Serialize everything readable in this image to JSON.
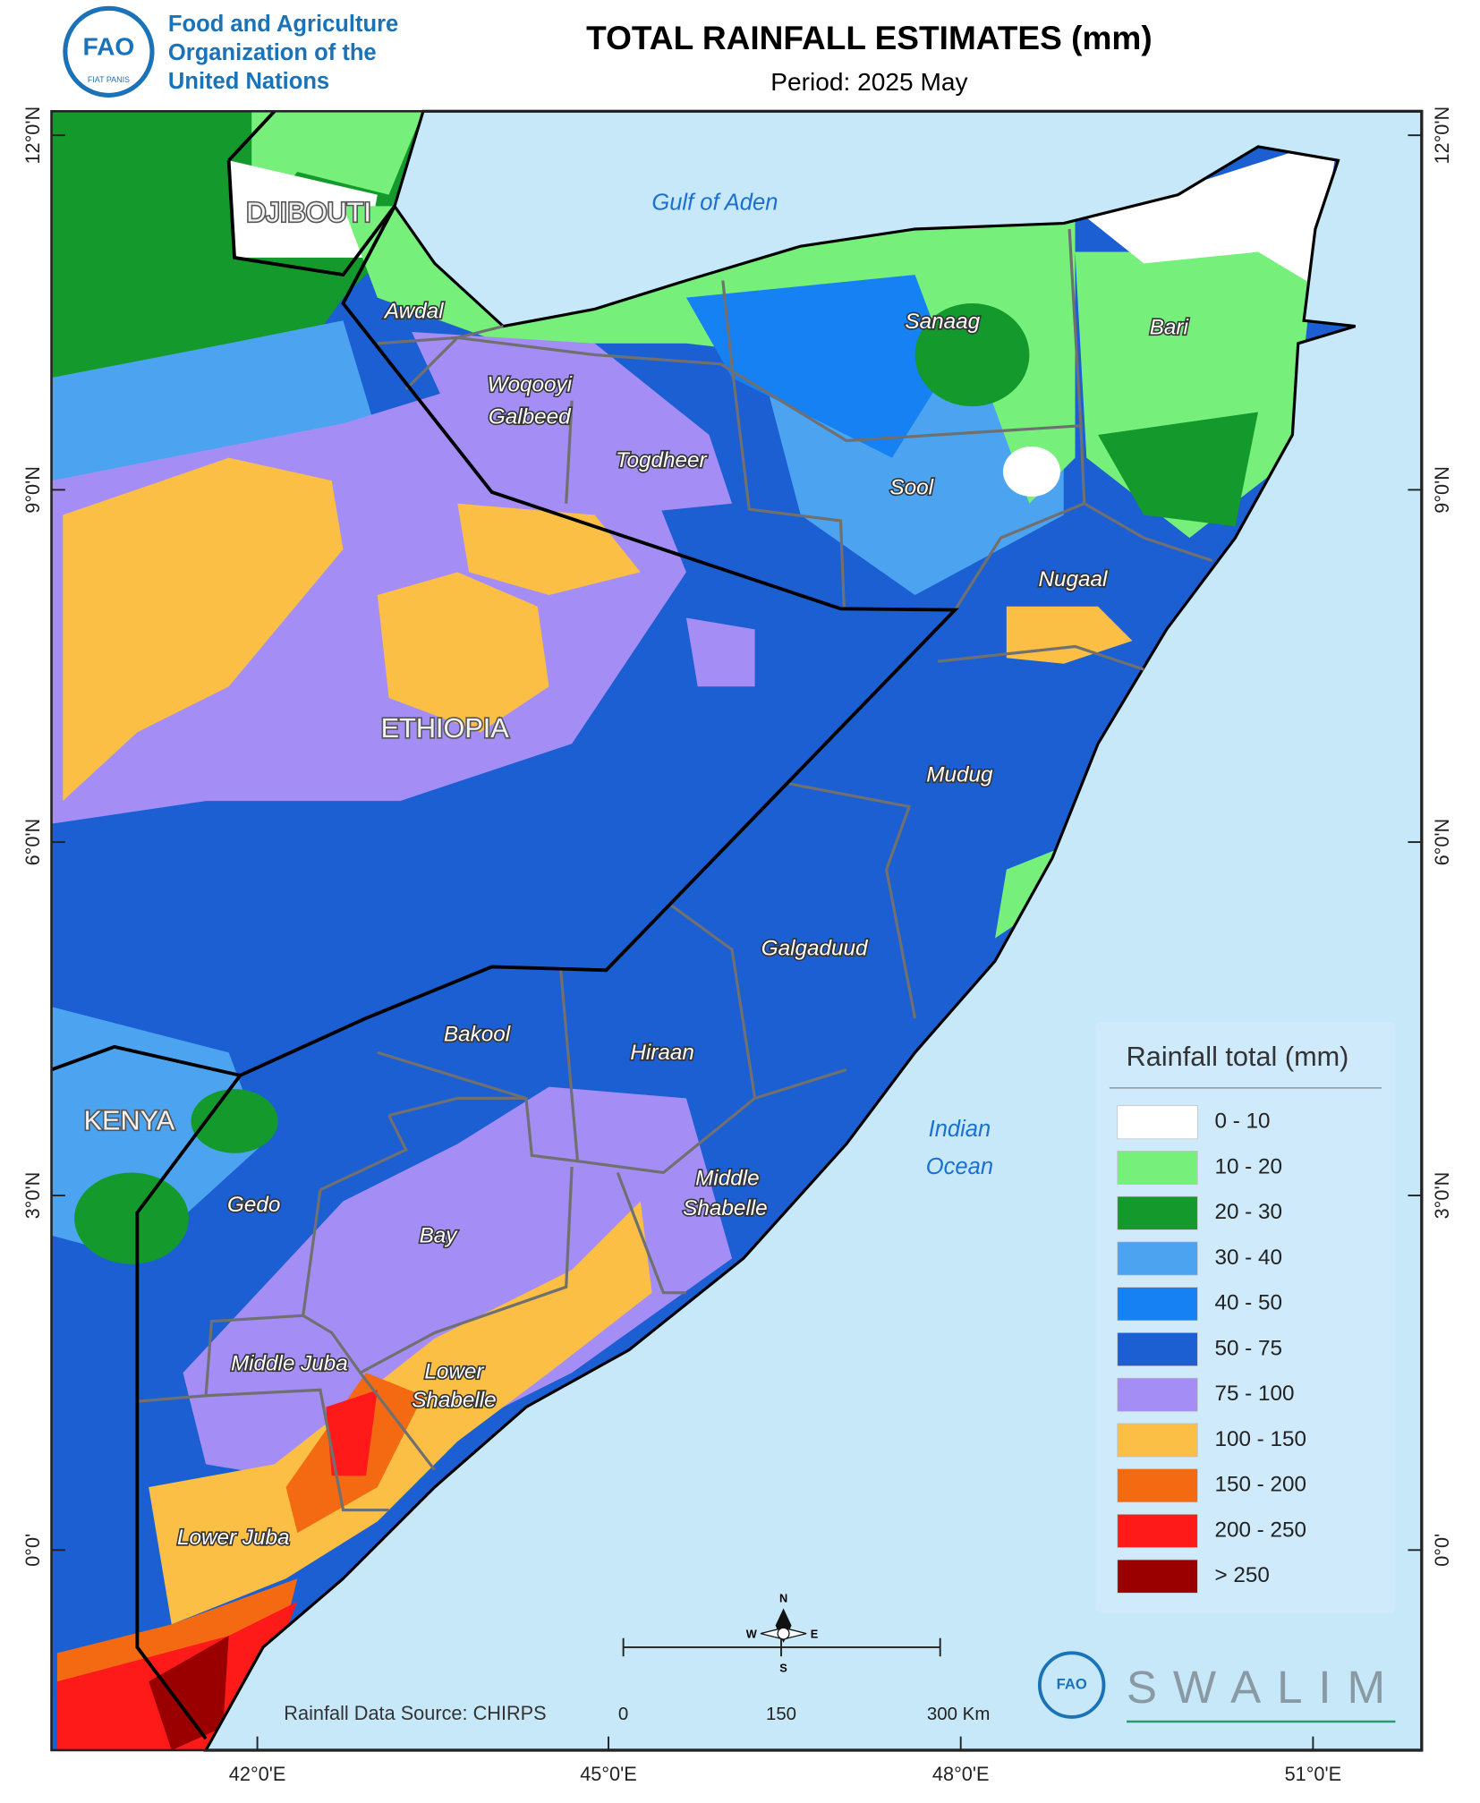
{
  "header": {
    "org_name": [
      "Food and Agriculture",
      "Organization of the",
      "United Nations"
    ],
    "logo": [
      "FAO",
      "FIAT PANIS"
    ],
    "title": "TOTAL RAINFALL ESTIMATES (mm)",
    "period": "Period: 2025 May"
  },
  "map": {
    "lat_labels": [
      "12°0'N",
      "9°0'N",
      "6°0'N",
      "3°0'N",
      "0°0'"
    ],
    "lon_labels": [
      "42°0'E",
      "45°0'E",
      "48°0'E",
      "51°0'E"
    ],
    "countries": [
      "DJIBOUTI",
      "ETHIOPIA",
      "KENYA"
    ],
    "regions": [
      "Awdal",
      [
        "Woqooyi",
        "Galbeed"
      ],
      "Togdheer",
      "Sanaag",
      "Bari",
      "Sool",
      "Nugaal",
      "Mudug",
      "Galgaduud",
      "Bakool",
      "Hiraan",
      [
        "Middle",
        "Shabelle"
      ],
      "Gedo",
      "Bay",
      "Middle Juba",
      [
        "Lower",
        "Shabelle"
      ],
      "Lower Juba"
    ],
    "water": [
      "Gulf of Aden",
      [
        "Indian",
        "Ocean"
      ]
    ]
  },
  "legend": {
    "title": "Rainfall total (mm)",
    "items": [
      {
        "label": "0 - 10",
        "color": "#ffffff"
      },
      {
        "label": "10 - 20",
        "color": "#76f07a"
      },
      {
        "label": "20 - 30",
        "color": "#149a2c"
      },
      {
        "label": "30 - 40",
        "color": "#4ca4f0"
      },
      {
        "label": "40 - 50",
        "color": "#1581f2"
      },
      {
        "label": "50 - 75",
        "color": "#1b5fd2"
      },
      {
        "label": "75 - 100",
        "color": "#a48ef6"
      },
      {
        "label": "100 - 150",
        "color": "#fbbf45"
      },
      {
        "label": "150 - 200",
        "color": "#f36a13"
      },
      {
        "label": "200 - 250",
        "color": "#ff1a1a"
      },
      {
        "label": "> 250",
        "color": "#9b0000"
      }
    ]
  },
  "footer": {
    "source": "Rainfall Data Source: CHIRPS",
    "scale_labels": [
      "0",
      "150",
      "300 Km"
    ],
    "compass": [
      "N",
      "E",
      "S",
      "W"
    ],
    "brand": "SWALIM"
  }
}
